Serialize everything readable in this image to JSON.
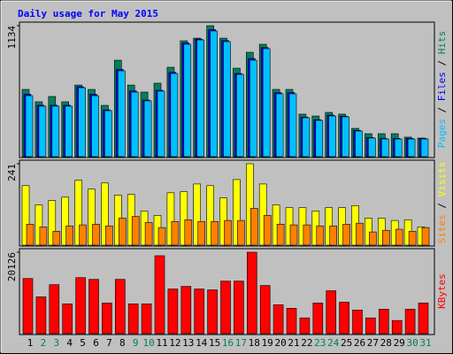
{
  "chart_data": [
    {
      "type": "bar",
      "title": "Daily usage for May 2015",
      "ylim": [
        0,
        1134
      ],
      "yticks": [
        1134
      ],
      "series": [
        {
          "name": "Hits",
          "color": "#00805c",
          "values": [
            582,
            475,
            521,
            475,
            620,
            582,
            444,
            835,
            620,
            559,
            636,
            774,
            1003,
            1026,
            1134,
            1026,
            766,
            904,
            973,
            582,
            582,
            368,
            352,
            383,
            368,
            245,
            199,
            199,
            199,
            169,
            161
          ]
        },
        {
          "name": "Files",
          "color": "#0000ff",
          "values": [
            540,
            445,
            445,
            445,
            605,
            540,
            405,
            755,
            570,
            490,
            575,
            730,
            985,
            1018,
            1100,
            1005,
            720,
            850,
            945,
            555,
            555,
            342,
            320,
            360,
            350,
            228,
            166,
            158,
            158,
            158,
            158
          ]
        },
        {
          "name": "Pages",
          "color": "#00c0ff",
          "values": [
            528,
            437,
            437,
            437,
            597,
            528,
            398,
            743,
            559,
            483,
            567,
            720,
            973,
            1011,
            1088,
            996,
            712,
            835,
            935,
            544,
            544,
            337,
            314,
            352,
            345,
            222,
            161,
            153,
            153,
            153,
            153
          ]
        }
      ]
    },
    {
      "type": "bar",
      "ylim": [
        0,
        241
      ],
      "yticks": [
        241
      ],
      "series": [
        {
          "name": "Visits",
          "color": "#ffff00",
          "values": [
            176,
            119,
            132,
            142,
            192,
            166,
            184,
            148,
            150,
            101,
            88,
            155,
            158,
            181,
            176,
            140,
            194,
            241,
            181,
            119,
            111,
            111,
            101,
            111,
            111,
            117,
            80,
            80,
            73,
            75,
            54
          ]
        },
        {
          "name": "Sites",
          "color": "#ff8000",
          "values": [
            62,
            54,
            41,
            57,
            60,
            62,
            57,
            80,
            85,
            67,
            52,
            70,
            75,
            70,
            70,
            73,
            73,
            109,
            88,
            62,
            60,
            60,
            57,
            57,
            62,
            65,
            39,
            44,
            47,
            41,
            52
          ]
        }
      ]
    },
    {
      "type": "bar",
      "ylim": [
        0,
        20126
      ],
      "yticks": [
        20126
      ],
      "categories": [
        "1",
        "2",
        "3",
        "4",
        "5",
        "6",
        "7",
        "8",
        "9",
        "10",
        "11",
        "12",
        "13",
        "14",
        "15",
        "16",
        "17",
        "18",
        "19",
        "20",
        "21",
        "22",
        "23",
        "24",
        "25",
        "26",
        "27",
        "28",
        "29",
        "30",
        "31"
      ],
      "category_colors": [
        "#000000",
        "#00805c",
        "#00805c",
        "#000000",
        "#000000",
        "#000000",
        "#000000",
        "#000000",
        "#00805c",
        "#00805c",
        "#000000",
        "#000000",
        "#000000",
        "#000000",
        "#000000",
        "#00805c",
        "#00805c",
        "#000000",
        "#000000",
        "#000000",
        "#000000",
        "#000000",
        "#00805c",
        "#00805c",
        "#000000",
        "#000000",
        "#000000",
        "#000000",
        "#000000",
        "#00805c",
        "#00805c"
      ],
      "series": [
        {
          "name": "KBytes",
          "color": "#ff0000",
          "values": [
            13633,
            9089,
            12118,
            7358,
            13850,
            13417,
            7574,
            13417,
            7358,
            7358,
            19260,
            11036,
            11686,
            11036,
            10820,
            12984,
            12984,
            20126,
            11902,
            7141,
            6276,
            3895,
            7574,
            10604,
            7790,
            5843,
            3895,
            6059,
            3246,
            6059,
            7574
          ]
        }
      ]
    }
  ]
}
